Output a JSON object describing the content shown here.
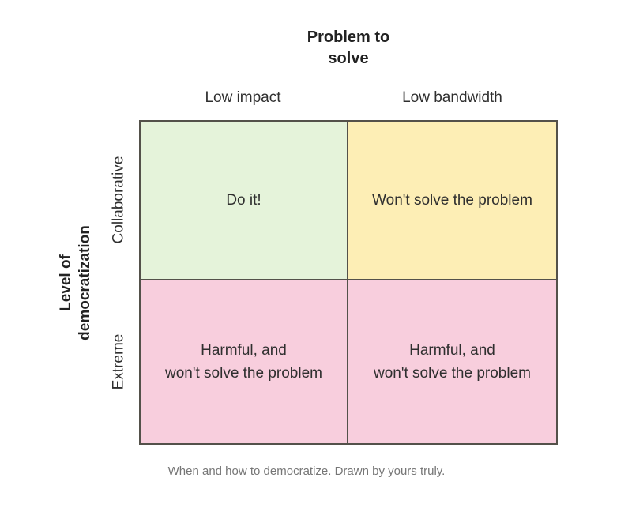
{
  "figure": {
    "x_axis_title": {
      "line1": "Problem to",
      "line2": "solve"
    },
    "y_axis_title": {
      "line1": "Level of",
      "line2": "democratization"
    },
    "columns": [
      {
        "label": "Low impact"
      },
      {
        "label": "Low bandwidth"
      }
    ],
    "rows": [
      {
        "label": "Collaborative"
      },
      {
        "label": "Extreme"
      }
    ],
    "quadrants": {
      "top_left": {
        "lines": [
          "Do it!"
        ],
        "color": "#e5f3da"
      },
      "top_right": {
        "lines": [
          "Won't solve the problem"
        ],
        "color": "#fdeeb5"
      },
      "bottom_left": {
        "lines": [
          "Harmful, and",
          "won't solve the problem"
        ],
        "color": "#f8cedd"
      },
      "bottom_right": {
        "lines": [
          "Harmful, and",
          "won't solve the problem"
        ],
        "color": "#f8cedd"
      }
    },
    "grid_line_color": "#54514a",
    "text_color": "#2f2f2f",
    "caption": "When and how to democratize. Drawn by yours truly."
  }
}
